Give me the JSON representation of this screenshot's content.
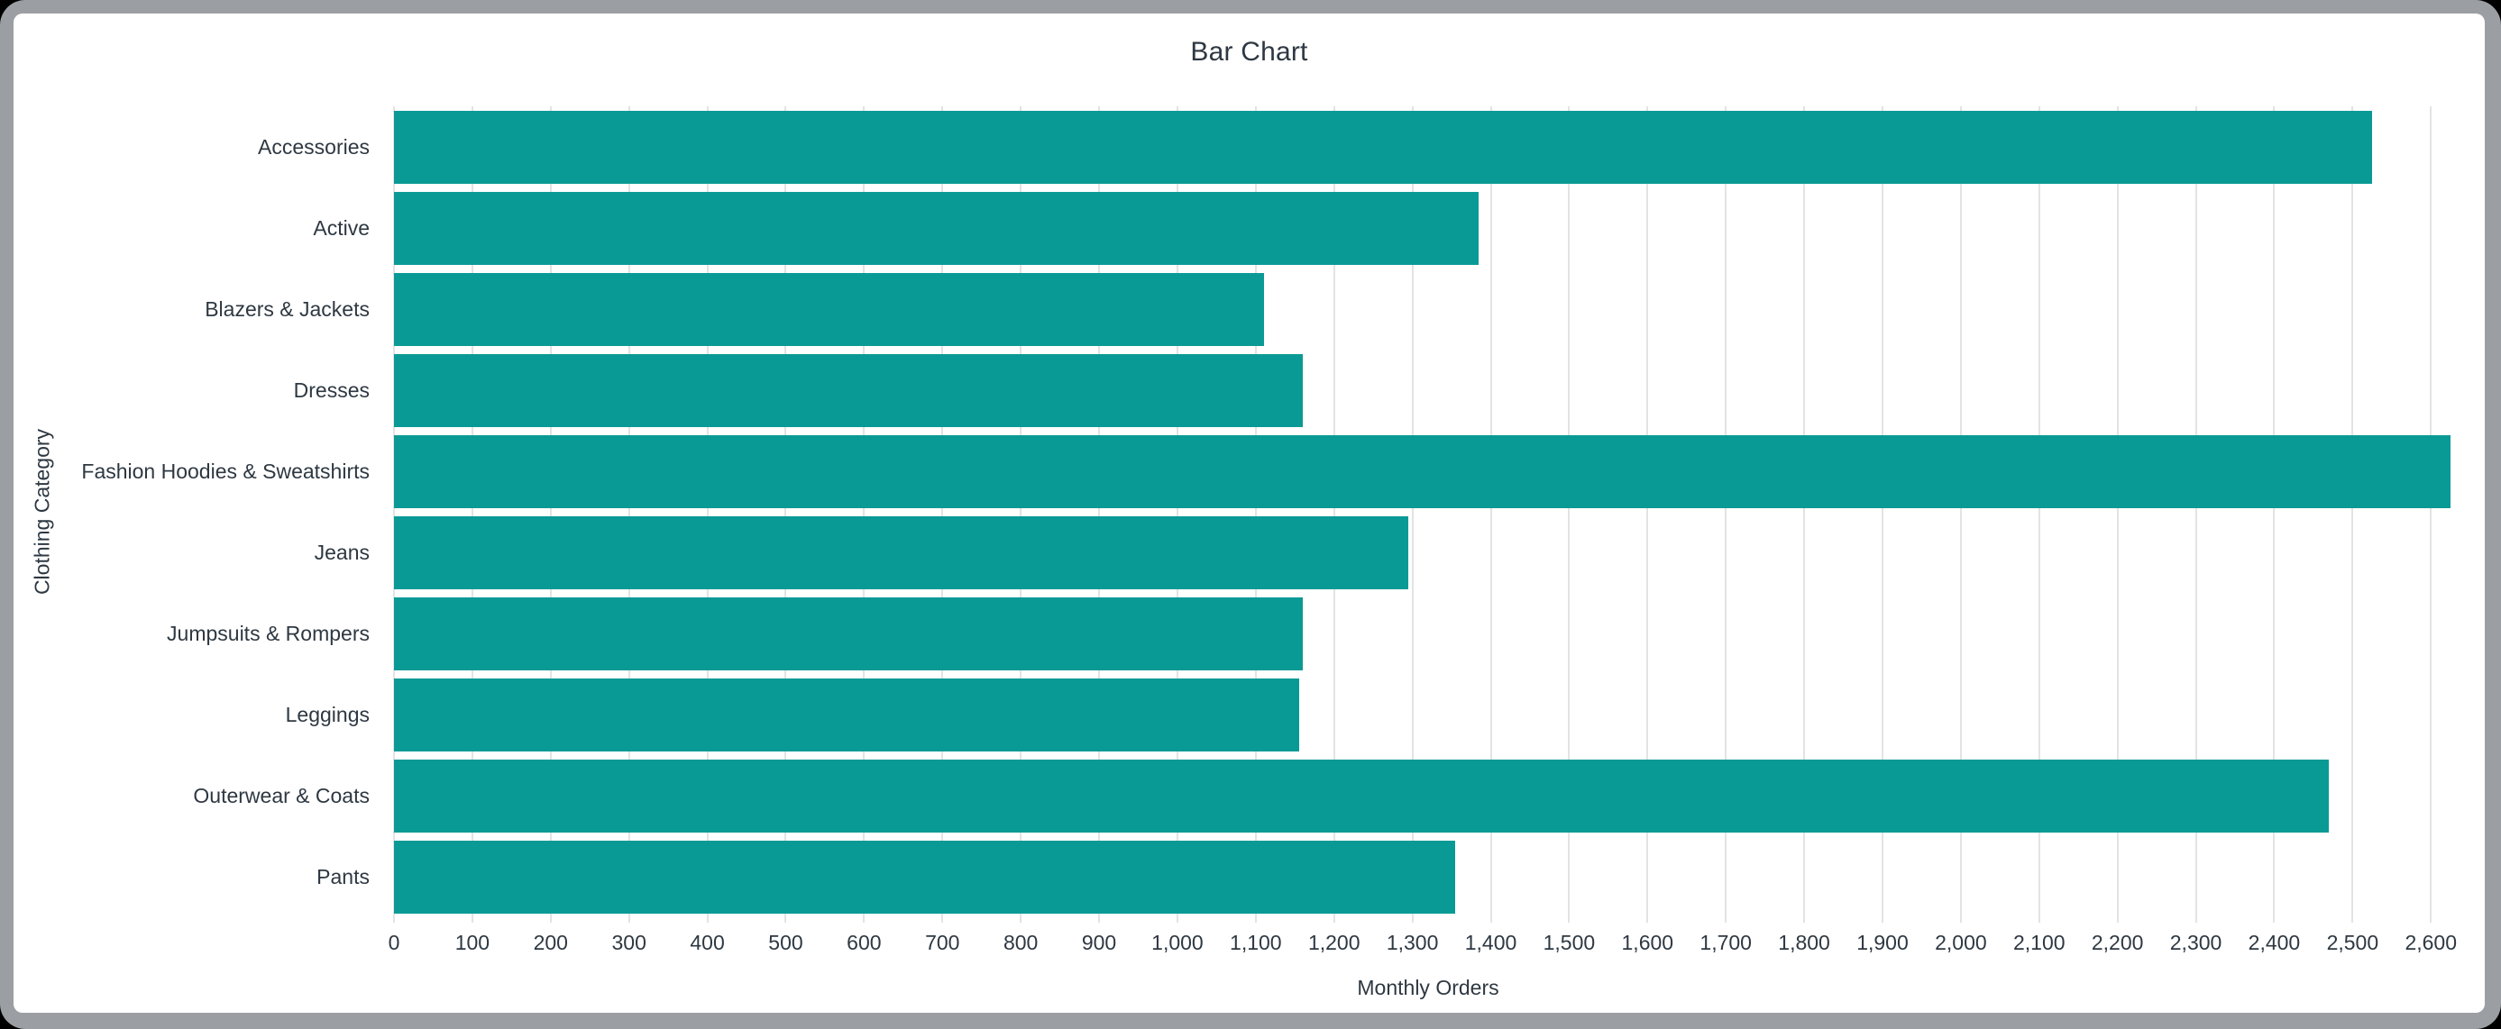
{
  "frame": {
    "color": "#9B9FA3",
    "outer_background": "#000000"
  },
  "card": {
    "background": "#FFFFFF"
  },
  "chart_data": {
    "type": "bar",
    "orientation": "horizontal",
    "title": "Bar Chart",
    "xlabel": "Monthly Orders",
    "ylabel": "Clothing Category",
    "categories": [
      "Accessories",
      "Active",
      "Blazers & Jackets",
      "Dresses",
      "Fashion Hoodies & Sweatshirts",
      "Jeans",
      "Jumpsuits & Rompers",
      "Leggings",
      "Outerwear & Coats",
      "Pants"
    ],
    "values": [
      2525,
      1385,
      1110,
      1160,
      2625,
      1295,
      1160,
      1155,
      2470,
      1355
    ],
    "xlim": [
      0,
      2640
    ],
    "xticks": [
      0,
      100,
      200,
      300,
      400,
      500,
      600,
      700,
      800,
      900,
      1000,
      1100,
      1200,
      1300,
      1400,
      1500,
      1600,
      1700,
      1800,
      1900,
      2000,
      2100,
      2200,
      2300,
      2400,
      2500,
      2600
    ],
    "xtick_labels": [
      "0",
      "100",
      "200",
      "300",
      "400",
      "500",
      "600",
      "700",
      "800",
      "900",
      "1,000",
      "1,100",
      "1,200",
      "1,300",
      "1,400",
      "1,500",
      "1,600",
      "1,700",
      "1,800",
      "1,900",
      "2,000",
      "2,100",
      "2,200",
      "2,300",
      "2,400",
      "2,500",
      "2,600"
    ],
    "bar_color": "#0A9A95",
    "grid": true,
    "gridline_color": "#E3E3E3",
    "text_color": "#2E3842",
    "legend": null
  }
}
